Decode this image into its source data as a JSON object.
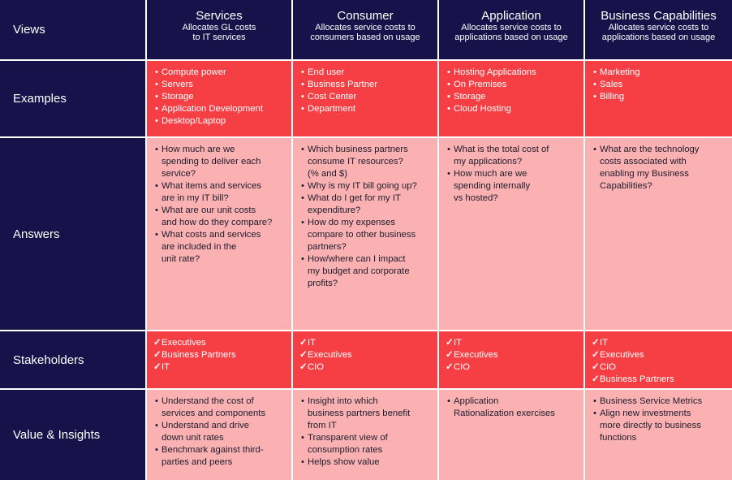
{
  "row_labels": {
    "views": "Views",
    "examples": "Examples",
    "answers": "Answers",
    "stakeholders": "Stakeholders",
    "value": "Value & Insights"
  },
  "columns": [
    {
      "title": "Services",
      "subtitle_1": "Allocates GL costs",
      "subtitle_2": "to IT services",
      "examples": [
        "Compute power",
        "Servers",
        "Storage",
        "Application Development",
        "Desktop/Laptop"
      ],
      "answers": [
        "How much are we",
        "spending to deliver each",
        "service?",
        "What items and services",
        "are in my IT bill?",
        "What are our unit costs",
        "and how do they compare?",
        "What costs and services",
        "are included in the",
        "unit rate?"
      ],
      "stakeholders": [
        "Executives",
        "Business Partners",
        "IT"
      ],
      "value": [
        "Understand the cost of",
        "services and components",
        "Understand and drive",
        "down unit rates",
        "Benchmark against third-",
        "parties and peers"
      ]
    },
    {
      "title": "Consumer",
      "subtitle_1": "Allocates service costs to",
      "subtitle_2": "consumers based on usage",
      "examples": [
        "End user",
        "Business Partner",
        "Cost Center",
        "Department"
      ],
      "answers": [
        "Which business partners",
        "consume IT resources?",
        "(% and $)",
        "Why is my IT bill going up?",
        "What do I get for my IT",
        "expenditure?",
        "How do my expenses",
        "compare to other business",
        "partners?",
        "How/where can I impact",
        "my budget and corporate",
        "profits?"
      ],
      "stakeholders": [
        "IT",
        "Executives",
        "CIO"
      ],
      "value": [
        "Insight into which",
        "business partners benefit",
        "from IT",
        "Transparent view of",
        "consumption rates",
        "Helps show value"
      ]
    },
    {
      "title": "Application",
      "subtitle_1": "Allocates service costs to",
      "subtitle_2": "applications based on usage",
      "examples": [
        "Hosting Applications",
        "On Premises",
        "Storage",
        "Cloud Hosting"
      ],
      "answers": [
        "What is the total cost of",
        "my applications?",
        "How much are we",
        "spending internally",
        "vs hosted?"
      ],
      "stakeholders": [
        "IT",
        "Executives",
        "CIO"
      ],
      "value": [
        "Application",
        "Rationalization exercises"
      ]
    },
    {
      "title": "Business Capabilities",
      "subtitle_1": "Allocates service costs to",
      "subtitle_2": "applications based on usage",
      "examples": [
        "Marketing",
        "Sales",
        "Billing"
      ],
      "answers": [
        "What are the technology",
        "costs associated with",
        "enabling my Business",
        "Capabilities?"
      ],
      "stakeholders": [
        "IT",
        "Executives",
        "CIO",
        "Business Partners"
      ],
      "value": [
        "Business Service Metrics",
        "Align new investments",
        "more directly to business",
        "functions"
      ]
    }
  ],
  "bullet_starts": {
    "answers": [
      [
        true,
        false,
        false,
        true,
        false,
        true,
        false,
        true,
        false,
        false
      ],
      [
        true,
        false,
        false,
        true,
        true,
        false,
        true,
        false,
        false,
        true,
        false,
        false
      ],
      [
        true,
        false,
        true,
        false,
        false
      ],
      [
        true,
        false,
        false,
        false
      ]
    ],
    "value": [
      [
        true,
        false,
        true,
        false,
        true,
        false
      ],
      [
        true,
        false,
        false,
        true,
        false,
        true
      ],
      [
        true,
        false
      ],
      [
        true,
        true,
        false,
        false
      ]
    ]
  },
  "check_glyph": "✓",
  "colors": {
    "navy": "#17124a",
    "red": "#f53f44",
    "pink": "#fbb1b1",
    "white": "#ffffff"
  }
}
